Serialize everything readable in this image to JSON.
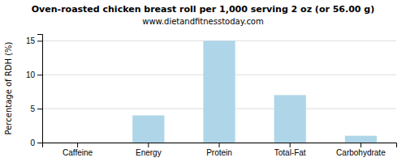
{
  "chart_data": {
    "type": "bar",
    "title": "Oven-roasted chicken breast roll per 1,000 serving 2 oz (or 56.00 g)",
    "subtitle": "www.dietandfitnesstoday.com",
    "ylabel": "Percentage of RDH (%)",
    "categories": [
      "Caffeine",
      "Energy",
      "Protein",
      "Total-Fat",
      "Carbohydrate"
    ],
    "values": [
      0,
      4,
      15,
      7,
      1
    ],
    "color": "#aed6e8",
    "ylim": [
      0,
      16
    ],
    "yticks": [
      0,
      5,
      10,
      15
    ],
    "grid": true
  }
}
